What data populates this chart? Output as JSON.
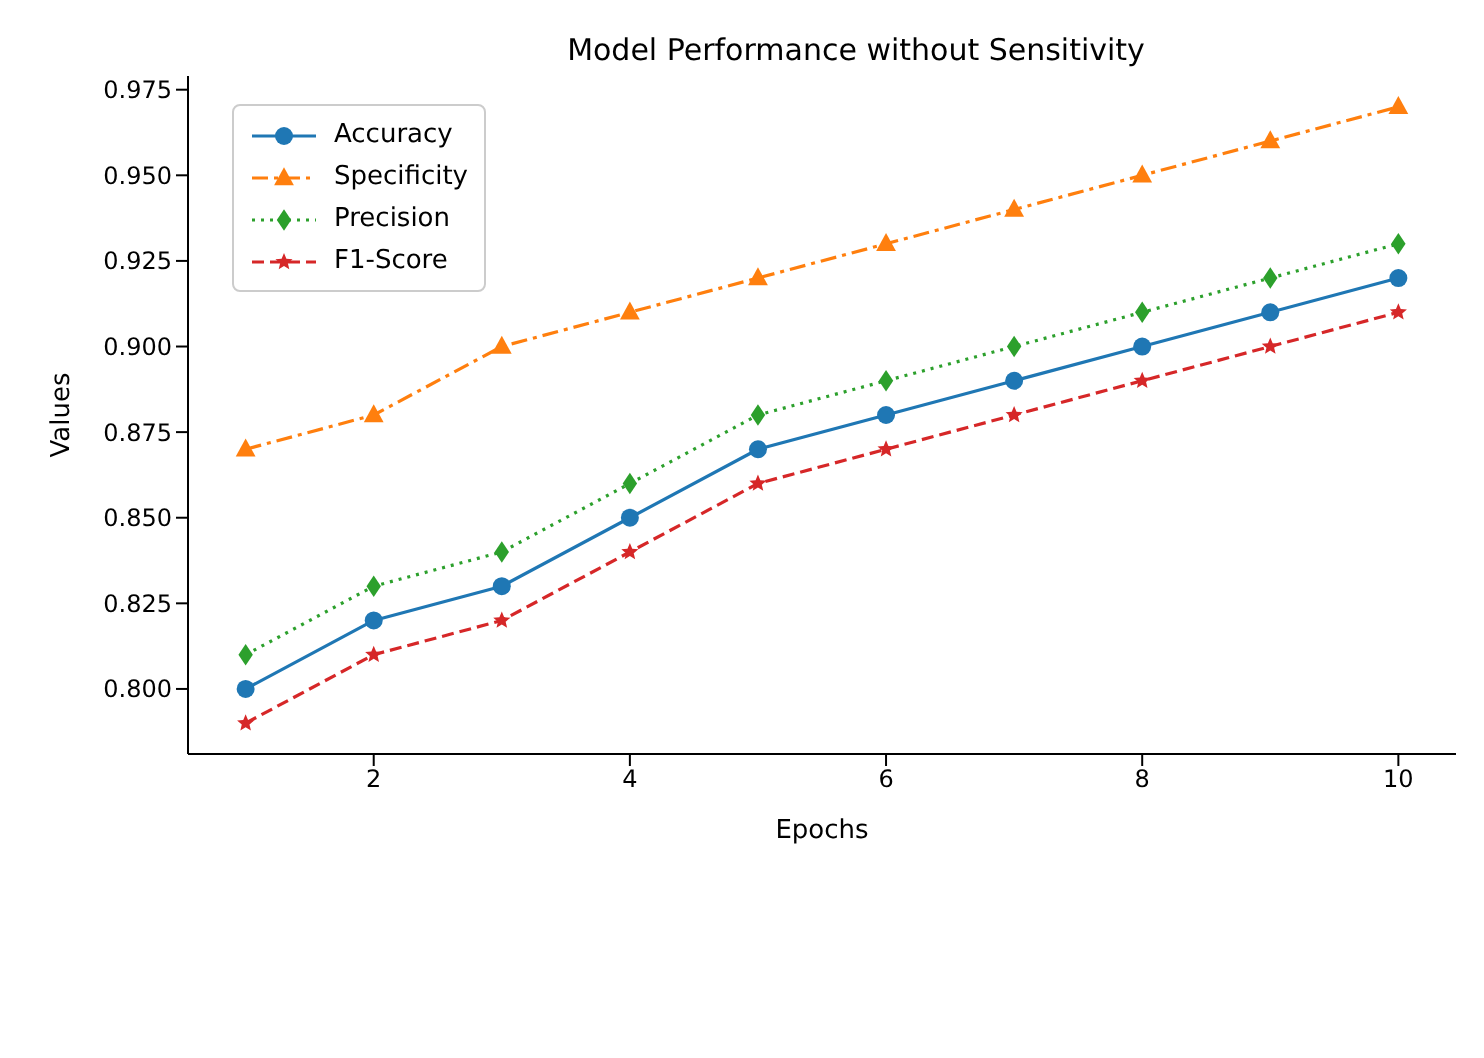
{
  "chart_data": {
    "type": "line",
    "title": "Model Performance without Sensitivity",
    "xlabel": "Epochs",
    "ylabel": "Values",
    "x": [
      1,
      2,
      3,
      4,
      5,
      6,
      7,
      8,
      9,
      10
    ],
    "xlim": [
      0.55,
      10.45
    ],
    "xticks": [
      2,
      4,
      6,
      8,
      10
    ],
    "ylim": [
      0.781,
      0.979
    ],
    "yticks": [
      {
        "value": 0.8,
        "label": "0.800"
      },
      {
        "value": 0.825,
        "label": "0.825"
      },
      {
        "value": 0.85,
        "label": "0.850"
      },
      {
        "value": 0.875,
        "label": "0.875"
      },
      {
        "value": 0.9,
        "label": "0.900"
      },
      {
        "value": 0.925,
        "label": "0.925"
      },
      {
        "value": 0.95,
        "label": "0.950"
      },
      {
        "value": 0.975,
        "label": "0.975"
      }
    ],
    "legend": "top left",
    "grid": false,
    "series": [
      {
        "name": "Accuracy",
        "color": "#1f77b4",
        "marker": "circle",
        "line_style": "solid",
        "values": [
          0.8,
          0.82,
          0.83,
          0.85,
          0.87,
          0.88,
          0.89,
          0.9,
          0.91,
          0.92
        ]
      },
      {
        "name": "Specificity",
        "color": "#ff7f0e",
        "marker": "triangle",
        "line_style": "dashdot",
        "values": [
          0.87,
          0.88,
          0.9,
          0.91,
          0.92,
          0.93,
          0.94,
          0.95,
          0.96,
          0.97
        ]
      },
      {
        "name": "Precision",
        "color": "#2ca02c",
        "marker": "diamond",
        "line_style": "dotted",
        "values": [
          0.81,
          0.83,
          0.84,
          0.86,
          0.88,
          0.89,
          0.9,
          0.91,
          0.92,
          0.93
        ]
      },
      {
        "name": "F1-Score",
        "color": "#d62728",
        "marker": "star",
        "line_style": "dashed",
        "values": [
          0.79,
          0.81,
          0.82,
          0.84,
          0.86,
          0.87,
          0.88,
          0.89,
          0.9,
          0.91
        ]
      }
    ]
  }
}
